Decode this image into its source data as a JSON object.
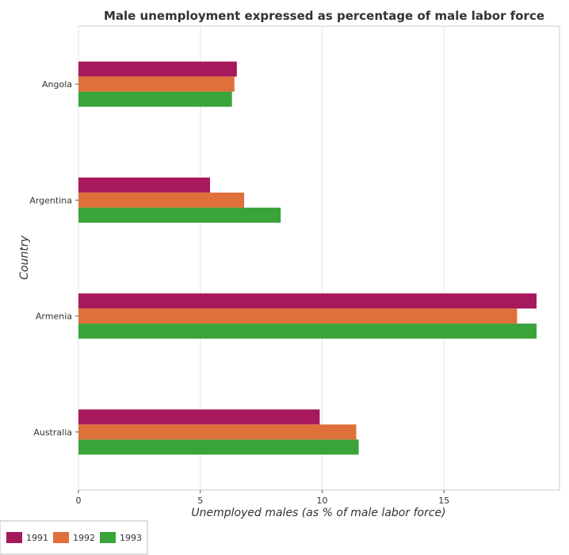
{
  "chart_data": {
    "type": "bar",
    "orientation": "horizontal",
    "title": "Male unemployment expressed as percentage of male labor force",
    "xlabel": "Unemployed males (as % of male labor force)",
    "ylabel": "Country",
    "categories": [
      "Angola",
      "Argentina",
      "Armenia",
      "Australia"
    ],
    "series": [
      {
        "name": "1991",
        "color": "#a8185c",
        "values": [
          6.5,
          5.4,
          18.8,
          9.9
        ]
      },
      {
        "name": "1992",
        "color": "#e0703a",
        "values": [
          6.4,
          6.8,
          18.0,
          11.4
        ]
      },
      {
        "name": "1993",
        "color": "#3aa33a",
        "values": [
          6.3,
          8.3,
          18.8,
          11.5
        ]
      }
    ],
    "xlim": [
      0,
      19.74
    ],
    "xticks": [
      0,
      5,
      10,
      15
    ],
    "xtick_labels": [
      "0",
      "5",
      "10",
      "15"
    ],
    "grid": true,
    "legend_position": "bottom-left"
  }
}
